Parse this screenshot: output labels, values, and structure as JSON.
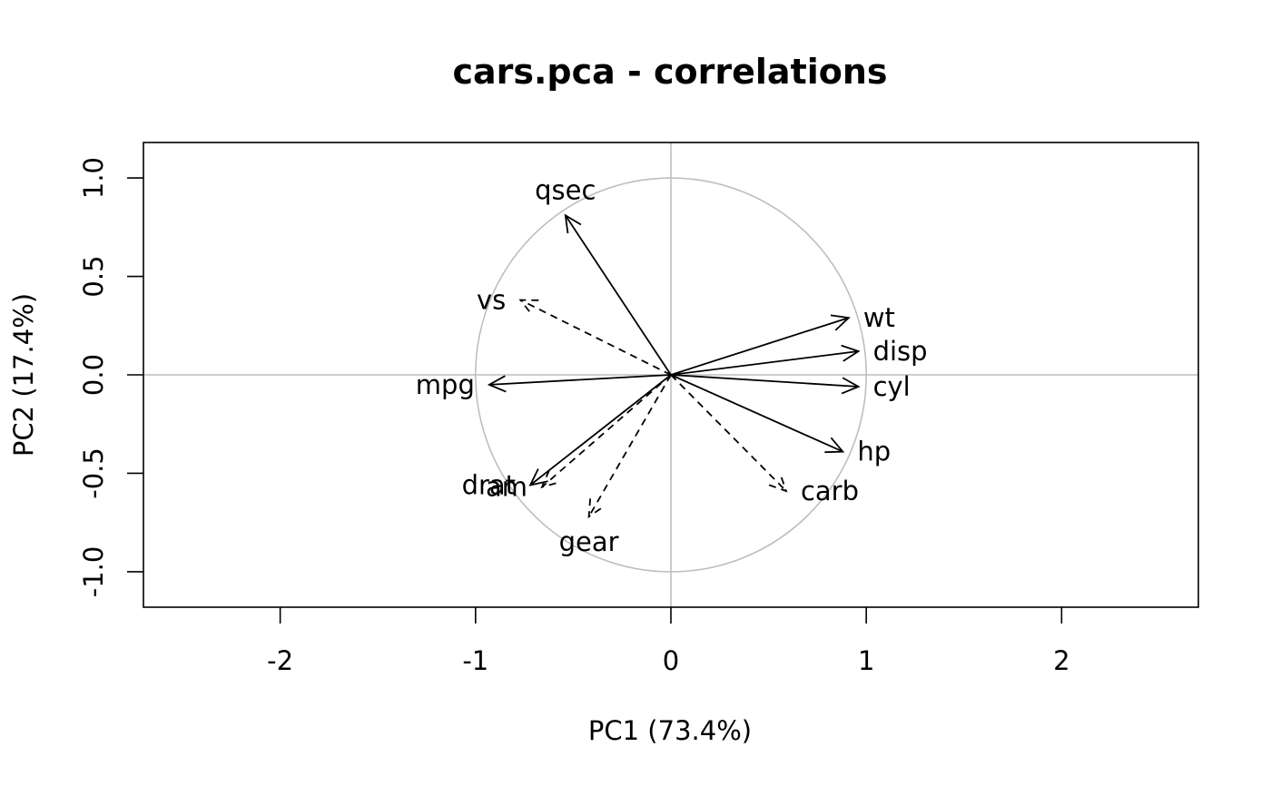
{
  "chart_data": {
    "type": "scatter",
    "title": "cars.pca - correlations",
    "xlabel": "PC1 (73.4%)",
    "ylabel": "PC2 (17.4%)",
    "xlim": [
      -2.7,
      2.7
    ],
    "ylim": [
      -1.18,
      1.18
    ],
    "x_ticks": [
      -2,
      -1,
      0,
      1,
      2
    ],
    "x_tick_labels": [
      "-2",
      "-1",
      "0",
      "1",
      "2"
    ],
    "y_ticks": [
      -1.0,
      -0.5,
      0.0,
      0.5,
      1.0
    ],
    "y_tick_labels": [
      "-1.0",
      "-0.5",
      "0.0",
      "0.5",
      "1.0"
    ],
    "grid": false,
    "unit_circle": true,
    "reference_lines": true,
    "colors": {
      "axes": "#000000",
      "circle": "#bebebe",
      "arrows": "#000000"
    },
    "vectors": [
      {
        "name": "mpg",
        "x": -0.93,
        "y": -0.05,
        "style": "solid",
        "label_pos": "left"
      },
      {
        "name": "cyl",
        "x": 0.96,
        "y": -0.06,
        "style": "solid",
        "label_pos": "right"
      },
      {
        "name": "disp",
        "x": 0.96,
        "y": 0.12,
        "style": "solid",
        "label_pos": "right"
      },
      {
        "name": "hp",
        "x": 0.88,
        "y": -0.39,
        "style": "solid",
        "label_pos": "right"
      },
      {
        "name": "drat",
        "x": -0.72,
        "y": -0.56,
        "style": "solid",
        "label_pos": "left"
      },
      {
        "name": "wt",
        "x": 0.91,
        "y": 0.29,
        "style": "solid",
        "label_pos": "right"
      },
      {
        "name": "qsec",
        "x": -0.54,
        "y": 0.81,
        "style": "solid",
        "label_pos": "top"
      },
      {
        "name": "vs",
        "x": -0.77,
        "y": 0.38,
        "style": "dashed",
        "label_pos": "left"
      },
      {
        "name": "am",
        "x": -0.66,
        "y": -0.57,
        "style": "dashed",
        "label_pos": "left"
      },
      {
        "name": "gear",
        "x": -0.42,
        "y": -0.72,
        "style": "dashed",
        "label_pos": "bottom"
      },
      {
        "name": "carb",
        "x": 0.59,
        "y": -0.59,
        "style": "dashed",
        "label_pos": "right"
      }
    ]
  }
}
